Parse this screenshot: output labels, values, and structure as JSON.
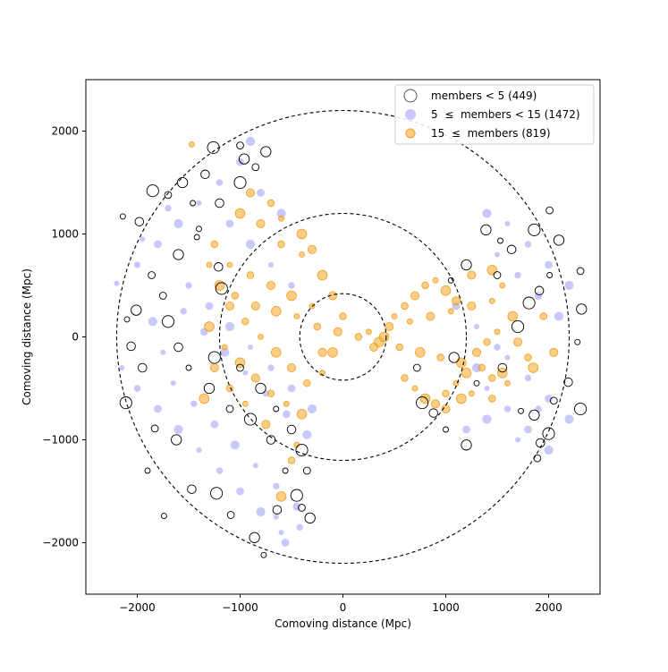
{
  "chart_data": {
    "type": "scatter",
    "title": "",
    "xlabel": "Comoving distance (Mpc)",
    "ylabel": "Comoving distance (Mpc)",
    "xlim": [
      -2500,
      2500
    ],
    "ylim": [
      -2500,
      2500
    ],
    "grid": false,
    "xticks": [
      -2000,
      -1000,
      0,
      1000,
      2000
    ],
    "yticks": [
      -2000,
      -1000,
      0,
      1000,
      2000
    ],
    "xtick_labels": [
      "−2000",
      "−1000",
      "0",
      "1000",
      "2000"
    ],
    "ytick_labels": [
      "−2000",
      "−1000",
      "0",
      "1000",
      "2000"
    ],
    "reference_circles": {
      "style": "dashed",
      "color": "#000000",
      "radii": [
        420,
        1200,
        2200
      ]
    },
    "legend": {
      "position": "top-right",
      "entries": [
        {
          "label": "members < 5 (449)",
          "series": "small"
        },
        {
          "label": "5  ≤  members < 15 (1472)",
          "series": "medium"
        },
        {
          "label": "15  ≤  members (819)",
          "series": "large"
        }
      ]
    },
    "series": [
      {
        "name": "members < 5",
        "key": "small",
        "count": 449,
        "marker": "open-circle",
        "edge_color": "#000000",
        "face_color": "none",
        "points": [
          [
            -2140,
            1170
          ],
          [
            -1980,
            1120
          ],
          [
            -1850,
            1420
          ],
          [
            -1700,
            1380
          ],
          [
            -1560,
            1500
          ],
          [
            -1460,
            1300
          ],
          [
            -1340,
            1580
          ],
          [
            -1260,
            1840
          ],
          [
            -1000,
            1860
          ],
          [
            -960,
            1730
          ],
          [
            -1420,
            970
          ],
          [
            -1210,
            680
          ],
          [
            -1180,
            470
          ],
          [
            -1860,
            600
          ],
          [
            -2010,
            260
          ],
          [
            -2100,
            170
          ],
          [
            -2060,
            -90
          ],
          [
            -2110,
            -640
          ],
          [
            -1830,
            -890
          ],
          [
            -1620,
            -1000
          ],
          [
            -1740,
            -1740
          ],
          [
            -1470,
            -1480
          ],
          [
            -1230,
            -1520
          ],
          [
            -1090,
            -1730
          ],
          [
            -860,
            -1950
          ],
          [
            -770,
            -2120
          ],
          [
            -640,
            -1680
          ],
          [
            -450,
            -1540
          ],
          [
            -400,
            -1660
          ],
          [
            -320,
            -1760
          ],
          [
            -560,
            -1300
          ],
          [
            -700,
            -1000
          ],
          [
            -900,
            -800
          ],
          [
            -1100,
            -700
          ],
          [
            -1300,
            -500
          ],
          [
            -1500,
            -300
          ],
          [
            -1600,
            -100
          ],
          [
            -1700,
            150
          ],
          [
            -1750,
            400
          ],
          [
            -1600,
            800
          ],
          [
            -1400,
            1050
          ],
          [
            -1200,
            1300
          ],
          [
            -1000,
            1500
          ],
          [
            -850,
            1650
          ],
          [
            -750,
            1800
          ],
          [
            -1900,
            -1300
          ],
          [
            -1950,
            -300
          ],
          [
            -1250,
            -200
          ],
          [
            -1000,
            -300
          ],
          [
            -800,
            -500
          ],
          [
            -650,
            -700
          ],
          [
            -500,
            -900
          ],
          [
            -400,
            -1100
          ],
          [
            -350,
            -1300
          ],
          [
            1390,
            1040
          ],
          [
            1530,
            935
          ],
          [
            1640,
            850
          ],
          [
            1860,
            1040
          ],
          [
            2010,
            1230
          ],
          [
            2100,
            940
          ],
          [
            2010,
            600
          ],
          [
            1910,
            450
          ],
          [
            1810,
            330
          ],
          [
            2310,
            640
          ],
          [
            2320,
            270
          ],
          [
            2280,
            -50
          ],
          [
            2190,
            -440
          ],
          [
            2310,
            -700
          ],
          [
            2050,
            -620
          ],
          [
            1860,
            -760
          ],
          [
            1730,
            -720
          ],
          [
            1920,
            -1030
          ],
          [
            2000,
            -940
          ],
          [
            1890,
            -1180
          ],
          [
            1200,
            -1050
          ],
          [
            1000,
            -900
          ],
          [
            880,
            -740
          ],
          [
            770,
            -640
          ],
          [
            720,
            -300
          ],
          [
            1080,
            -200
          ],
          [
            1300,
            -450
          ],
          [
            1550,
            -300
          ],
          [
            1700,
            100
          ],
          [
            1500,
            600
          ],
          [
            1200,
            700
          ],
          [
            1050,
            550
          ]
        ]
      },
      {
        "name": "5 ≤ members < 15",
        "key": "medium",
        "count": 1472,
        "marker": "filled-circle",
        "face_color": "#9b9bf5",
        "alpha": 0.55,
        "points": [
          [
            -2200,
            520
          ],
          [
            -2000,
            700
          ],
          [
            -1800,
            900
          ],
          [
            -1600,
            1100
          ],
          [
            -1400,
            1300
          ],
          [
            -1200,
            1500
          ],
          [
            -1000,
            1700
          ],
          [
            -900,
            1900
          ],
          [
            -2150,
            -300
          ],
          [
            -2000,
            -500
          ],
          [
            -1800,
            -700
          ],
          [
            -1600,
            -900
          ],
          [
            -1400,
            -1100
          ],
          [
            -1200,
            -1300
          ],
          [
            -1000,
            -1500
          ],
          [
            -800,
            -1700
          ],
          [
            -600,
            -1900
          ],
          [
            -1500,
            500
          ],
          [
            -1300,
            300
          ],
          [
            -1100,
            100
          ],
          [
            -900,
            -100
          ],
          [
            -700,
            -300
          ],
          [
            -500,
            -500
          ],
          [
            -300,
            -700
          ],
          [
            -1650,
            -450
          ],
          [
            -1450,
            -650
          ],
          [
            -1250,
            -850
          ],
          [
            -1050,
            -1050
          ],
          [
            -850,
            -1250
          ],
          [
            -650,
            -1450
          ],
          [
            -450,
            -1650
          ],
          [
            -1850,
            150
          ],
          [
            -1750,
            -150
          ],
          [
            -1550,
            250
          ],
          [
            -1350,
            50
          ],
          [
            -1150,
            -150
          ],
          [
            -950,
            -350
          ],
          [
            -750,
            -550
          ],
          [
            -550,
            -750
          ],
          [
            -350,
            -950
          ],
          [
            -1950,
            950
          ],
          [
            -1700,
            1250
          ],
          [
            -1100,
            1100
          ],
          [
            -900,
            900
          ],
          [
            -700,
            700
          ],
          [
            -500,
            500
          ],
          [
            -800,
            1400
          ],
          [
            -600,
            1200
          ],
          [
            -650,
            -1750
          ],
          [
            -420,
            -1850
          ],
          [
            -560,
            -2000
          ],
          [
            1400,
            1200
          ],
          [
            1600,
            1100
          ],
          [
            1800,
            900
          ],
          [
            2000,
            700
          ],
          [
            2200,
            500
          ],
          [
            1500,
            800
          ],
          [
            1700,
            600
          ],
          [
            1900,
            400
          ],
          [
            2100,
            200
          ],
          [
            1600,
            -200
          ],
          [
            1800,
            -400
          ],
          [
            2000,
            -600
          ],
          [
            2200,
            -800
          ],
          [
            1400,
            -500
          ],
          [
            1600,
            -700
          ],
          [
            1800,
            -900
          ],
          [
            2000,
            -1100
          ],
          [
            1300,
            100
          ],
          [
            1500,
            -100
          ],
          [
            1100,
            300
          ],
          [
            1300,
            -300
          ],
          [
            1700,
            -1000
          ],
          [
            1900,
            -700
          ],
          [
            1200,
            -900
          ],
          [
            1400,
            -800
          ]
        ]
      },
      {
        "name": "15 ≤ members",
        "key": "large",
        "count": 819,
        "marker": "filled-circle-with-edge",
        "face_color": "#f5a623",
        "edge_color": "#f0a020",
        "alpha": 0.55,
        "points": [
          [
            -1470,
            1870
          ],
          [
            -1000,
            1200
          ],
          [
            -800,
            1100
          ],
          [
            -600,
            900
          ],
          [
            -400,
            800
          ],
          [
            -200,
            600
          ],
          [
            -100,
            400
          ],
          [
            0,
            200
          ],
          [
            -300,
            300
          ],
          [
            -500,
            400
          ],
          [
            -700,
            500
          ],
          [
            -900,
            600
          ],
          [
            -1100,
            700
          ],
          [
            -1200,
            500
          ],
          [
            -1100,
            300
          ],
          [
            -950,
            150
          ],
          [
            -800,
            0
          ],
          [
            -650,
            -150
          ],
          [
            -500,
            -300
          ],
          [
            -350,
            -450
          ],
          [
            -200,
            -350
          ],
          [
            -100,
            -150
          ],
          [
            -50,
            50
          ],
          [
            -250,
            100
          ],
          [
            -450,
            200
          ],
          [
            -650,
            250
          ],
          [
            -850,
            300
          ],
          [
            -1050,
            400
          ],
          [
            -1150,
            -100
          ],
          [
            -1000,
            -250
          ],
          [
            -850,
            -400
          ],
          [
            -700,
            -550
          ],
          [
            -550,
            -650
          ],
          [
            -400,
            -750
          ],
          [
            -1250,
            -300
          ],
          [
            -1100,
            -500
          ],
          [
            -950,
            -650
          ],
          [
            -1300,
            100
          ],
          [
            -900,
            1400
          ],
          [
            -700,
            1300
          ],
          [
            -600,
            1150
          ],
          [
            -400,
            1000
          ],
          [
            -300,
            850
          ],
          [
            -1250,
            900
          ],
          [
            -1300,
            700
          ],
          [
            -1350,
            -600
          ],
          [
            -750,
            -850
          ],
          [
            -500,
            -1200
          ],
          [
            -450,
            -1050
          ],
          [
            -600,
            -1550
          ],
          [
            -200,
            -150
          ],
          [
            150,
            0
          ],
          [
            250,
            50
          ],
          [
            350,
            -50
          ],
          [
            450,
            100
          ],
          [
            550,
            -100
          ],
          [
            650,
            150
          ],
          [
            750,
            -150
          ],
          [
            850,
            200
          ],
          [
            950,
            -200
          ],
          [
            1050,
            250
          ],
          [
            1150,
            -250
          ],
          [
            1250,
            300
          ],
          [
            1350,
            -300
          ],
          [
            1450,
            350
          ],
          [
            1550,
            -350
          ],
          [
            700,
            400
          ],
          [
            800,
            500
          ],
          [
            900,
            550
          ],
          [
            1000,
            450
          ],
          [
            1100,
            350
          ],
          [
            600,
            300
          ],
          [
            500,
            200
          ],
          [
            400,
            0
          ],
          [
            300,
            -100
          ],
          [
            600,
            -400
          ],
          [
            700,
            -500
          ],
          [
            800,
            -600
          ],
          [
            900,
            -650
          ],
          [
            1000,
            -550
          ],
          [
            1100,
            -450
          ],
          [
            1200,
            -350
          ],
          [
            1300,
            -150
          ],
          [
            1400,
            -50
          ],
          [
            1500,
            50
          ],
          [
            1650,
            200
          ],
          [
            1700,
            -50
          ],
          [
            1800,
            -200
          ],
          [
            1550,
            500
          ],
          [
            1450,
            650
          ],
          [
            1250,
            600
          ],
          [
            1450,
            -400
          ],
          [
            1250,
            -550
          ],
          [
            1150,
            -600
          ],
          [
            1000,
            -700
          ],
          [
            1450,
            -600
          ],
          [
            1600,
            -450
          ],
          [
            1850,
            -300
          ],
          [
            2050,
            -150
          ],
          [
            1950,
            200
          ]
        ]
      }
    ]
  }
}
